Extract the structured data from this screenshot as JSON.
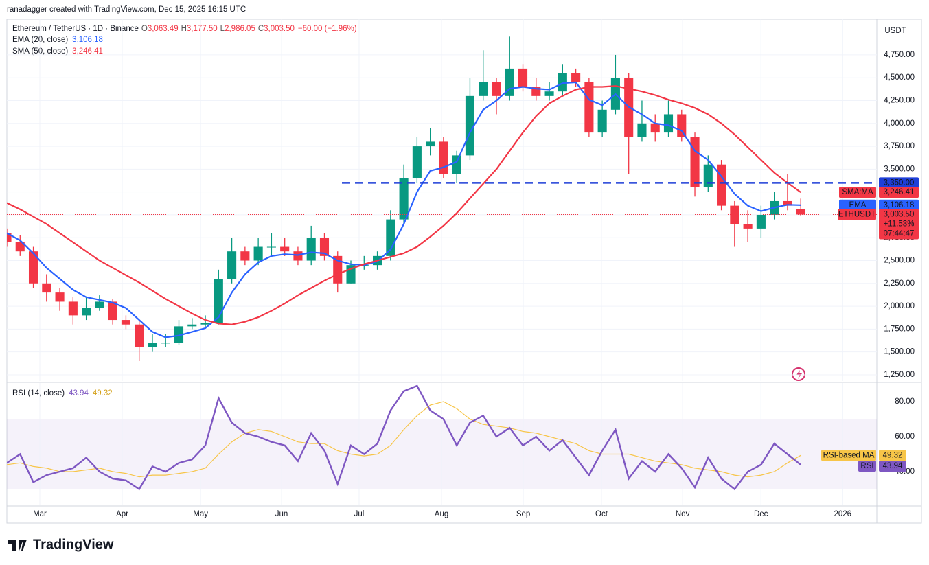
{
  "header": {
    "caption": "ranadagger created with TradingView.com, Dec 15, 2025 16:15 UTC",
    "brand": "TradingView"
  },
  "chart_data": [
    {
      "type": "candlestick",
      "title": "Ethereum / TetherUS · 1D · Binance",
      "legend_fields": [
        {
          "label": "O",
          "text": "3,063.49"
        },
        {
          "label": "H",
          "text": "3,177.50"
        },
        {
          "label": "L",
          "text": "2,986.05"
        },
        {
          "label": "C",
          "text": "3,003.50"
        }
      ],
      "change": "−60.00 (−1.96%)",
      "currency": "USDT",
      "up_color": "#089981",
      "down_color": "#f23645",
      "open": [
        2800,
        2700,
        2600,
        2250,
        2150,
        2050,
        1900,
        1980,
        2050,
        1850,
        1800,
        1550,
        1600,
        1600,
        1780,
        1800,
        1820,
        2300,
        2600,
        2500,
        2650,
        2650,
        2600,
        2500,
        2750,
        2550,
        2250,
        2450,
        2450,
        2550,
        2950,
        3400,
        3750,
        3800,
        3450,
        3650,
        4300,
        4450,
        4300,
        4600,
        4400,
        4300,
        4350,
        4550,
        4450,
        3900,
        4150,
        4500,
        3850,
        4000,
        3900,
        4100,
        3850,
        3300,
        3550,
        3100,
        2900,
        2850,
        3000,
        3150,
        3063.49
      ],
      "high": [
        2850,
        2780,
        2650,
        2350,
        2200,
        2100,
        2100,
        2120,
        2080,
        1900,
        1850,
        1700,
        1700,
        1850,
        1870,
        1900,
        2400,
        2750,
        2650,
        2750,
        2800,
        2750,
        2650,
        2880,
        2800,
        2600,
        2500,
        2550,
        2600,
        3050,
        3550,
        3850,
        3950,
        3850,
        3700,
        4500,
        4800,
        4500,
        4950,
        4650,
        4500,
        4450,
        4650,
        4600,
        4500,
        4250,
        4750,
        4550,
        4250,
        4100,
        4250,
        4150,
        3900,
        3650,
        3600,
        3150,
        3050,
        3100,
        3250,
        3450,
        3177.5
      ],
      "low": [
        2650,
        2550,
        2200,
        2050,
        1950,
        1800,
        1850,
        1950,
        1800,
        1750,
        1400,
        1500,
        1550,
        1580,
        1750,
        1760,
        1800,
        2250,
        2450,
        2450,
        2550,
        2550,
        2450,
        2450,
        2500,
        2150,
        2250,
        2400,
        2400,
        2500,
        2900,
        3350,
        3650,
        3400,
        3350,
        3600,
        4250,
        4100,
        4250,
        4350,
        4250,
        4250,
        4300,
        4400,
        3850,
        3850,
        4100,
        3450,
        3800,
        3800,
        3850,
        3800,
        3200,
        3250,
        3050,
        2650,
        2700,
        2750,
        2950,
        3050,
        2986.05
      ],
      "close": [
        2700,
        2600,
        2250,
        2150,
        2050,
        1900,
        1980,
        2050,
        1850,
        1800,
        1550,
        1600,
        1600,
        1780,
        1800,
        1820,
        2300,
        2600,
        2500,
        2650,
        2650,
        2600,
        2500,
        2750,
        2550,
        2250,
        2450,
        2450,
        2550,
        2950,
        3400,
        3750,
        3800,
        3450,
        3650,
        4300,
        4450,
        4300,
        4600,
        4400,
        4300,
        4350,
        4550,
        4450,
        3900,
        4150,
        4500,
        3850,
        4000,
        3900,
        4100,
        3850,
        3300,
        3550,
        3100,
        2900,
        2850,
        3000,
        3150,
        3100,
        3003.5
      ],
      "series": [
        {
          "name": "EMA (20, close)",
          "tag": "EMA",
          "color": "#2962ff",
          "value_label": "3,106.18",
          "values": [
            2800,
            2720,
            2580,
            2420,
            2300,
            2180,
            2100,
            2070,
            2040,
            1980,
            1850,
            1720,
            1660,
            1680,
            1720,
            1760,
            1880,
            2150,
            2350,
            2480,
            2550,
            2570,
            2560,
            2590,
            2580,
            2500,
            2460,
            2450,
            2490,
            2620,
            2900,
            3250,
            3480,
            3520,
            3580,
            3900,
            4150,
            4250,
            4380,
            4400,
            4380,
            4370,
            4440,
            4450,
            4260,
            4200,
            4320,
            4180,
            4100,
            4000,
            3980,
            3920,
            3700,
            3600,
            3420,
            3230,
            3100,
            3040,
            3080,
            3110,
            3106.18
          ]
        },
        {
          "name": "SMA (50, close)",
          "tag": "SMA:MA",
          "color": "#f23645",
          "value_label": "3,246.41",
          "values": [
            3130,
            3060,
            2980,
            2900,
            2800,
            2700,
            2600,
            2500,
            2420,
            2340,
            2260,
            2170,
            2080,
            2000,
            1920,
            1850,
            1810,
            1800,
            1830,
            1880,
            1950,
            2030,
            2120,
            2200,
            2280,
            2350,
            2410,
            2460,
            2500,
            2540,
            2580,
            2650,
            2760,
            2880,
            3020,
            3180,
            3340,
            3500,
            3700,
            3900,
            4080,
            4220,
            4300,
            4370,
            4400,
            4400,
            4410,
            4380,
            4350,
            4310,
            4260,
            4220,
            4170,
            4100,
            4000,
            3880,
            3740,
            3600,
            3460,
            3350,
            3246.41
          ]
        }
      ],
      "levels": [
        {
          "value": 3350,
          "label": "3,350.00",
          "color": "#1e3fd8"
        }
      ],
      "last": {
        "symbol": "ETHUSDT",
        "label": "3,003.50",
        "change": "+11.53%",
        "countdown": "07:44:47"
      },
      "xlim": [
        0,
        65.75
      ],
      "ylim": [
        1182,
        5140
      ],
      "yticks": [
        {
          "value": 1250,
          "label": "1,250.00"
        },
        {
          "value": 1500,
          "label": "1,500.00"
        },
        {
          "value": 1750,
          "label": "1,750.00"
        },
        {
          "value": 2000,
          "label": "2,000.00"
        },
        {
          "value": 2250,
          "label": "2,250.00"
        },
        {
          "value": 2500,
          "label": "2,500.00"
        },
        {
          "value": 2750,
          "label": "2,750.00"
        },
        {
          "value": 3000,
          "label": "3,000.00"
        },
        {
          "value": 3250,
          "label": "3,250.00"
        },
        {
          "value": 3500,
          "label": "3,500.00"
        },
        {
          "value": 3750,
          "label": "3,750.00"
        },
        {
          "value": 4000,
          "label": "4,000.00"
        },
        {
          "value": 4250,
          "label": "4,250.00"
        },
        {
          "value": 4500,
          "label": "4,500.00"
        },
        {
          "value": 4750,
          "label": "4,750.00"
        }
      ],
      "grid": true
    },
    {
      "type": "line",
      "title": "RSI (14, close)",
      "series": [
        {
          "name": "RSI",
          "color": "#7e57c2",
          "value_label": "43.94",
          "values": [
            45,
            50,
            34,
            38,
            40,
            42,
            48,
            40,
            36,
            35,
            30,
            43,
            40,
            45,
            47,
            55,
            82,
            68,
            62,
            60,
            57,
            55,
            46,
            62,
            52,
            33,
            55,
            50,
            56,
            75,
            86,
            89,
            75,
            70,
            55,
            68,
            72,
            60,
            65,
            55,
            60,
            52,
            58,
            48,
            38,
            52,
            64,
            36,
            46,
            40,
            50,
            42,
            31,
            48,
            36,
            30,
            40,
            44,
            56,
            50,
            43.94
          ]
        },
        {
          "name": "RSI-based MA",
          "color": "#f7c548",
          "value_label": "49.32",
          "values": [
            44,
            45,
            43,
            42,
            40,
            40,
            41,
            42,
            40,
            39,
            37,
            38,
            38,
            39,
            40,
            42,
            50,
            57,
            62,
            64,
            63,
            60,
            57,
            56,
            56,
            52,
            50,
            49,
            50,
            55,
            64,
            72,
            78,
            80,
            76,
            70,
            67,
            66,
            65,
            63,
            62,
            60,
            58,
            56,
            52,
            50,
            50,
            50,
            48,
            46,
            45,
            44,
            42,
            41,
            40,
            38,
            37,
            38,
            40,
            45,
            49.32
          ]
        }
      ],
      "bands": [
        70,
        50,
        30
      ],
      "xlim": [
        0,
        65.75
      ],
      "ylim": [
        21.2,
        89.8
      ],
      "yticks": [
        {
          "value": 40,
          "label": "40.00"
        },
        {
          "value": 60,
          "label": "60.00"
        },
        {
          "value": 80,
          "label": "80.00"
        }
      ],
      "xticks": [
        {
          "value": 2.49,
          "label": "Mar"
        },
        {
          "value": 8.72,
          "label": "Apr"
        },
        {
          "value": 14.64,
          "label": "May"
        },
        {
          "value": 20.76,
          "label": "Jun"
        },
        {
          "value": 26.62,
          "label": "Jul"
        },
        {
          "value": 32.85,
          "label": "Aug"
        },
        {
          "value": 39.03,
          "label": "Sep"
        },
        {
          "value": 44.94,
          "label": "Oct"
        },
        {
          "value": 51.07,
          "label": "Nov"
        },
        {
          "value": 56.99,
          "label": "Dec"
        },
        {
          "value": 63.17,
          "label": "2026"
        }
      ],
      "grid": true
    }
  ]
}
